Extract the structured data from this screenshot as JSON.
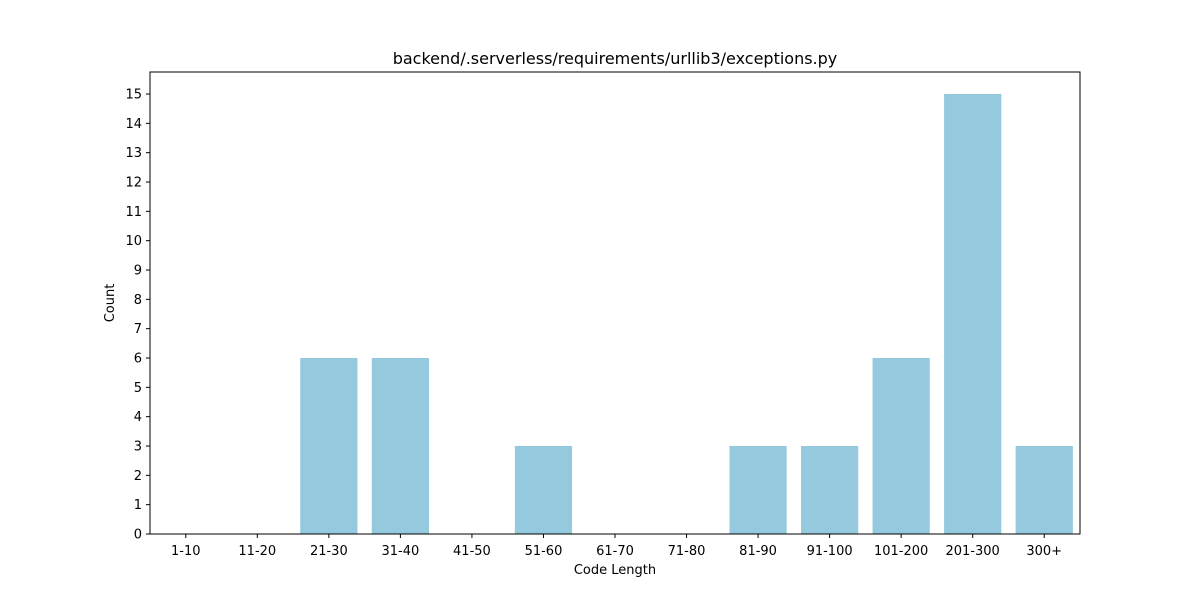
{
  "chart_data": {
    "type": "bar",
    "title": "backend/.serverless/requirements/urllib3/exceptions.py",
    "xlabel": "Code Length",
    "ylabel": "Count",
    "categories": [
      "1-10",
      "11-20",
      "21-30",
      "31-40",
      "41-50",
      "51-60",
      "61-70",
      "71-80",
      "81-90",
      "91-100",
      "101-200",
      "201-300",
      "300+"
    ],
    "values": [
      0,
      0,
      6,
      6,
      0,
      3,
      0,
      0,
      3,
      3,
      6,
      15,
      3
    ],
    "ylim": [
      0,
      15.75
    ],
    "yticks": [
      0,
      1,
      2,
      3,
      4,
      5,
      6,
      7,
      8,
      9,
      10,
      11,
      12,
      13,
      14,
      15
    ],
    "bar_color": "#95c9de",
    "grid": false,
    "legend": "none"
  }
}
